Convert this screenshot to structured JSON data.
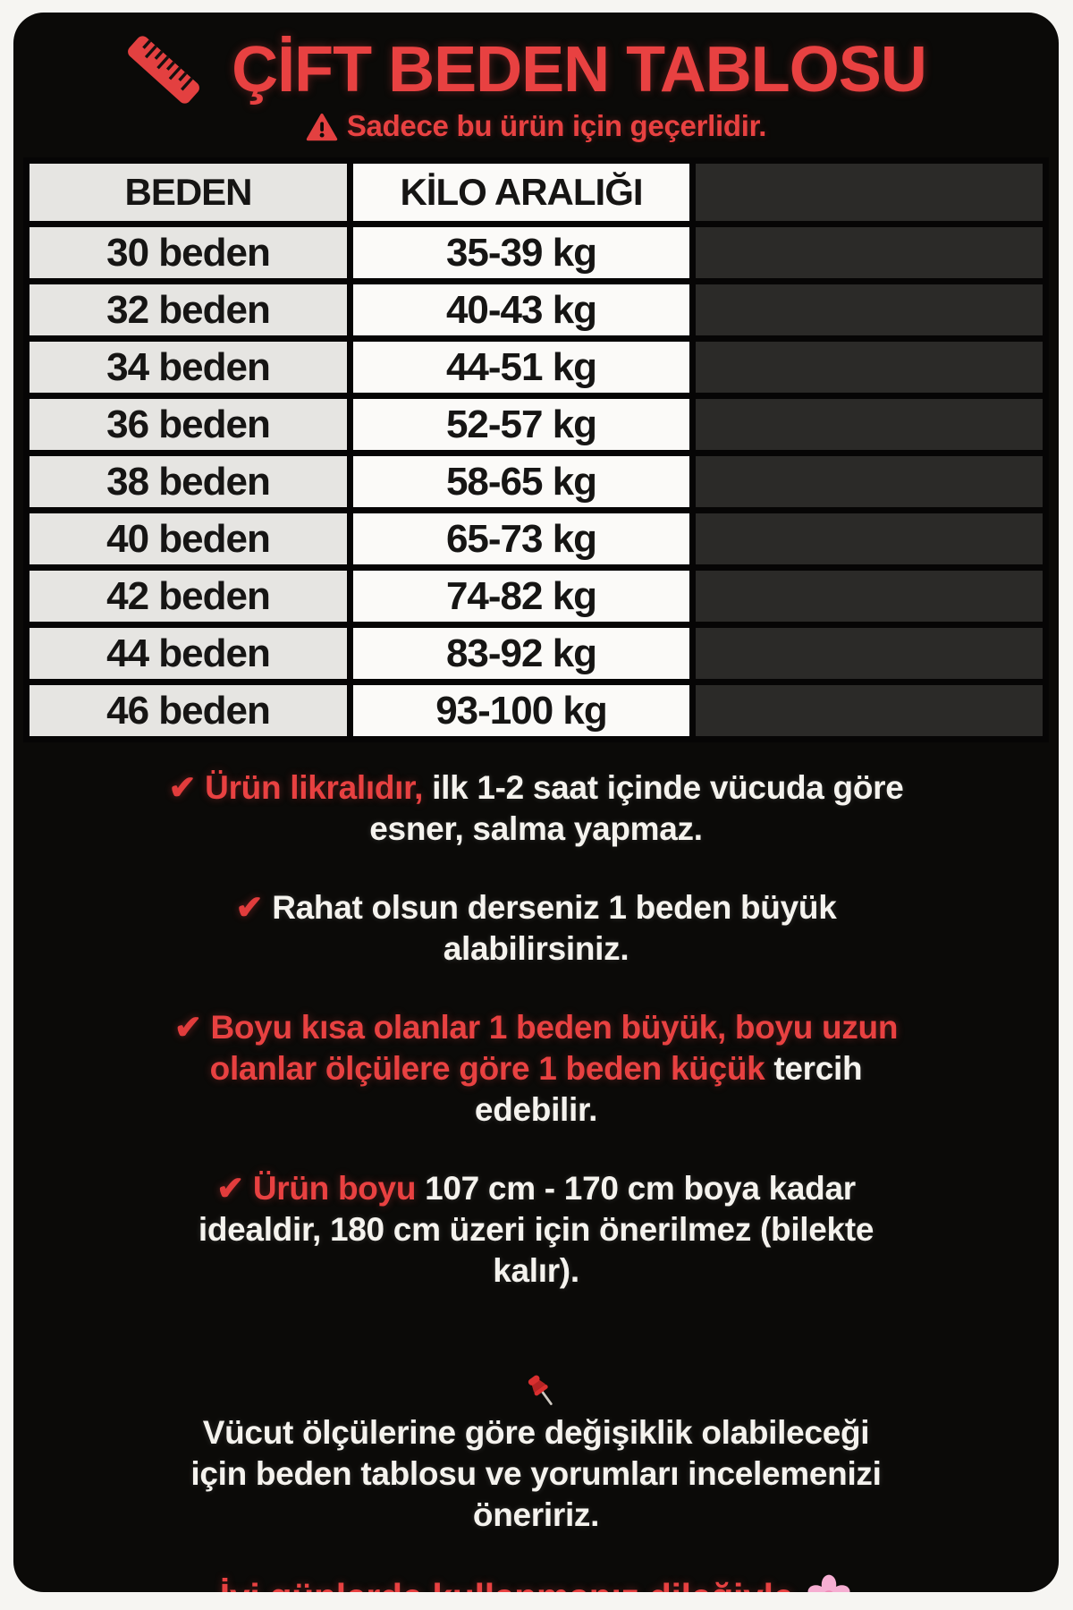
{
  "theme": {
    "accent_red": "#e84141",
    "text_white": "#f5f3ee",
    "card_bg": "#0b0a08",
    "page_bg": "#f6f5f2",
    "table_col_size_bg": "#e6e5e2",
    "table_col_kilo_bg": "#fbfaf8",
    "table_col_empty_bg": "#2b2a28"
  },
  "icons": {
    "check": "✔",
    "ruler": "ruler-icon",
    "warning": "warning-triangle-icon",
    "pin": "pushpin-icon",
    "flower": "cherry-blossom-icon"
  },
  "header": {
    "title": "ÇİFT BEDEN TABLOSU",
    "subtitle": "Sadece bu ürün için geçerlidir."
  },
  "table": {
    "columns": [
      "BEDEN",
      "KİLO ARALIĞI",
      ""
    ],
    "rows": [
      {
        "size": "30 beden",
        "weight": "35-39 kg"
      },
      {
        "size": "32 beden",
        "weight": "40-43 kg"
      },
      {
        "size": "34 beden",
        "weight": "44-51 kg"
      },
      {
        "size": "36 beden",
        "weight": "52-57 kg"
      },
      {
        "size": "38 beden",
        "weight": "58-65 kg"
      },
      {
        "size": "40 beden",
        "weight": "65-73 kg"
      },
      {
        "size": "42 beden",
        "weight": "74-82 kg"
      },
      {
        "size": "44 beden",
        "weight": "83-92 kg"
      },
      {
        "size": "46 beden",
        "weight": "93-100 kg"
      }
    ]
  },
  "notes": [
    {
      "icon": "check",
      "segments": [
        {
          "text": "Ürün likralıdır,",
          "color": "red"
        },
        {
          "text": " ilk 1-2 saat içinde vücuda göre\nesner, salma yapmaz.",
          "color": "white"
        }
      ]
    },
    {
      "icon": "check",
      "segments": [
        {
          "text": "Rahat olsun derseniz 1 beden büyük\nalabilirsiniz.",
          "color": "white"
        }
      ]
    },
    {
      "icon": "check",
      "segments": [
        {
          "text": "Boyu kısa olanlar 1 beden büyük, boyu uzun\nolanlar ölçülere göre 1 beden küçük",
          "color": "red"
        },
        {
          "text": " tercih\nedebilir.",
          "color": "white"
        }
      ]
    },
    {
      "icon": "check",
      "segments": [
        {
          "text": "Ürün boyu",
          "color": "red"
        },
        {
          "text": " 107 cm - 170 cm boya kadar\nidealdir, 180 cm üzeri için önerilmez (bilekte\nkalır).",
          "color": "white"
        }
      ]
    },
    {
      "icon": "pin",
      "segments": [
        {
          "text": "Vücut ölçülerine göre değişiklik olabileceği\niçin beden tablosu ve yorumları incelemenizi\nöneririz.",
          "color": "white"
        }
      ]
    }
  ],
  "footer": {
    "text": "İyi günlerde kullanmanız dileğiyle"
  }
}
